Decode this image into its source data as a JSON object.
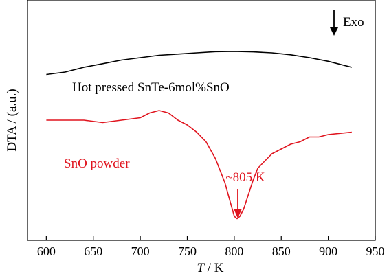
{
  "chart_data": {
    "type": "line",
    "xlabel_italic": "T",
    "xlabel_rest": " / K",
    "ylabel": "DTA / (a.u.)",
    "xlim": [
      580,
      950
    ],
    "xticks": [
      600,
      650,
      700,
      750,
      800,
      850,
      900,
      950
    ],
    "yticks_shown": false,
    "grid": false,
    "direction_label": "Exo",
    "series": [
      {
        "name": "Hot pressed SnTe-6mol%SnO",
        "color": "#000000",
        "x": [
          600,
          620,
          640,
          660,
          680,
          700,
          720,
          740,
          760,
          780,
          800,
          820,
          840,
          860,
          880,
          900,
          925
        ],
        "y": [
          0.69,
          0.7,
          0.72,
          0.735,
          0.75,
          0.76,
          0.77,
          0.775,
          0.78,
          0.785,
          0.786,
          0.784,
          0.78,
          0.772,
          0.76,
          0.745,
          0.72
        ]
      },
      {
        "name": "SnO powder",
        "color": "#e0141e",
        "x": [
          600,
          620,
          640,
          660,
          680,
          700,
          710,
          720,
          730,
          740,
          750,
          760,
          770,
          780,
          790,
          795,
          800,
          803,
          806,
          810,
          815,
          820,
          825,
          830,
          840,
          850,
          860,
          870,
          880,
          890,
          900,
          925
        ],
        "y": [
          0.5,
          0.5,
          0.5,
          0.49,
          0.5,
          0.51,
          0.53,
          0.54,
          0.53,
          0.5,
          0.48,
          0.45,
          0.41,
          0.34,
          0.24,
          0.17,
          0.1,
          0.09,
          0.1,
          0.13,
          0.19,
          0.25,
          0.3,
          0.32,
          0.36,
          0.38,
          0.4,
          0.41,
          0.43,
          0.43,
          0.44,
          0.45
        ]
      }
    ],
    "annotations": [
      {
        "text": "~805 K",
        "color": "#e0141e"
      }
    ]
  }
}
